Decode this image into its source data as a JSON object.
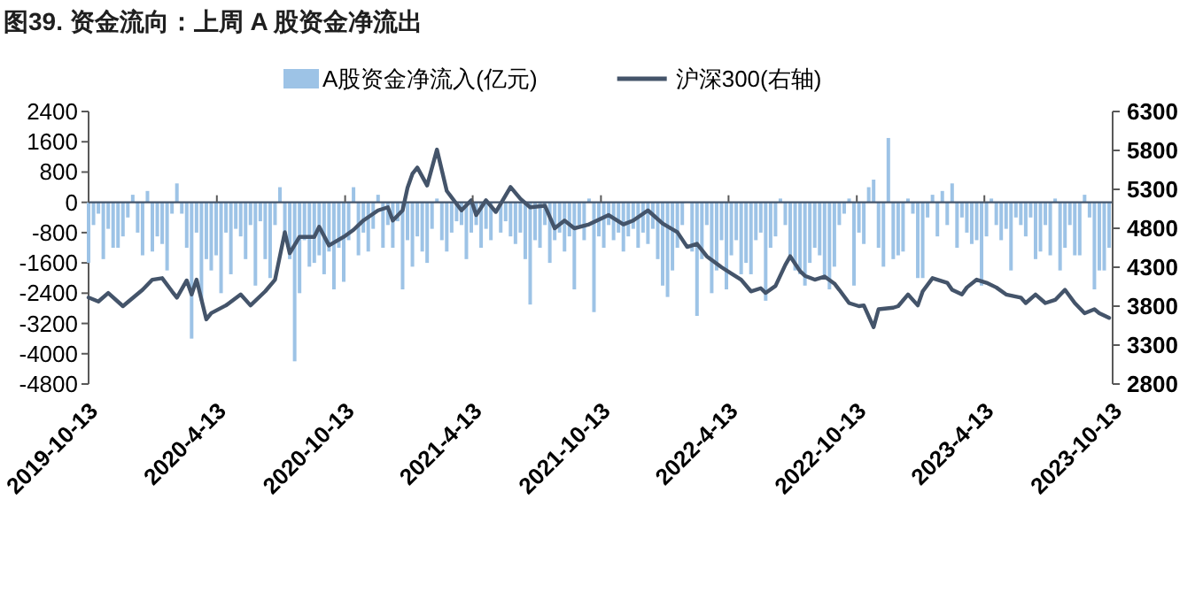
{
  "chart_data": {
    "type": "bar",
    "title": "图39. 资金流向：上周 A 股资金净流出",
    "legend": "top",
    "x": [
      "2019-10-13",
      "2019-10-20",
      "2019-10-27",
      "2019-11-03",
      "2019-11-10",
      "2019-11-17",
      "2019-11-24",
      "2019-12-01",
      "2019-12-08",
      "2019-12-15",
      "2019-12-22",
      "2019-12-29",
      "2020-01-05",
      "2020-01-12",
      "2020-01-19",
      "2020-01-26",
      "2020-02-02",
      "2020-02-09",
      "2020-02-16",
      "2020-02-23",
      "2020-03-01",
      "2020-03-08",
      "2020-03-15",
      "2020-03-22",
      "2020-03-29",
      "2020-04-05",
      "2020-04-12",
      "2020-04-19",
      "2020-04-26",
      "2020-05-03",
      "2020-05-10",
      "2020-05-17",
      "2020-05-24",
      "2020-05-31",
      "2020-06-07",
      "2020-06-14",
      "2020-06-21",
      "2020-06-28",
      "2020-07-05",
      "2020-07-12",
      "2020-07-19",
      "2020-07-26",
      "2020-08-02",
      "2020-08-09",
      "2020-08-16",
      "2020-08-23",
      "2020-08-30",
      "2020-09-06",
      "2020-09-13",
      "2020-09-20",
      "2020-09-27",
      "2020-10-04",
      "2020-10-11",
      "2020-10-18",
      "2020-10-25",
      "2020-11-01",
      "2020-11-08",
      "2020-11-15",
      "2020-11-22",
      "2020-11-29",
      "2020-12-06",
      "2020-12-13",
      "2020-12-20",
      "2020-12-27",
      "2021-01-03",
      "2021-01-10",
      "2021-01-17",
      "2021-01-24",
      "2021-01-31",
      "2021-02-07",
      "2021-02-14",
      "2021-02-21",
      "2021-02-28",
      "2021-03-07",
      "2021-03-14",
      "2021-03-21",
      "2021-03-28",
      "2021-04-04",
      "2021-04-11",
      "2021-04-18",
      "2021-04-25",
      "2021-05-02",
      "2021-05-09",
      "2021-05-16",
      "2021-05-23",
      "2021-05-30",
      "2021-06-06",
      "2021-06-13",
      "2021-06-20",
      "2021-06-27",
      "2021-07-04",
      "2021-07-11",
      "2021-07-18",
      "2021-07-25",
      "2021-08-01",
      "2021-08-08",
      "2021-08-15",
      "2021-08-22",
      "2021-08-29",
      "2021-09-05",
      "2021-09-12",
      "2021-09-19",
      "2021-09-26",
      "2021-10-03",
      "2021-10-10",
      "2021-10-17",
      "2021-10-24",
      "2021-10-31",
      "2021-11-07",
      "2021-11-14",
      "2021-11-21",
      "2021-11-28",
      "2021-12-05",
      "2021-12-12",
      "2021-12-19",
      "2021-12-26",
      "2022-01-02",
      "2022-01-09",
      "2022-01-16",
      "2022-01-23",
      "2022-01-30",
      "2022-02-06",
      "2022-02-13",
      "2022-02-20",
      "2022-02-27",
      "2022-03-06",
      "2022-03-13",
      "2022-03-20",
      "2022-03-27",
      "2022-04-03",
      "2022-04-10",
      "2022-04-17",
      "2022-04-24",
      "2022-05-01",
      "2022-05-08",
      "2022-05-15",
      "2022-05-22",
      "2022-05-29",
      "2022-06-05",
      "2022-06-12",
      "2022-06-19",
      "2022-06-26",
      "2022-07-03",
      "2022-07-10",
      "2022-07-17",
      "2022-07-24",
      "2022-07-31",
      "2022-08-07",
      "2022-08-14",
      "2022-08-21",
      "2022-08-28",
      "2022-09-04",
      "2022-09-11",
      "2022-09-18",
      "2022-09-25",
      "2022-10-02",
      "2022-10-09",
      "2022-10-16",
      "2022-10-23",
      "2022-10-30",
      "2022-11-06",
      "2022-11-13",
      "2022-11-20",
      "2022-11-27",
      "2022-12-04",
      "2022-12-11",
      "2022-12-18",
      "2022-12-25",
      "2023-01-01",
      "2023-01-08",
      "2023-01-15",
      "2023-01-22",
      "2023-01-29",
      "2023-02-05",
      "2023-02-12",
      "2023-02-19",
      "2023-02-26",
      "2023-03-05",
      "2023-03-12",
      "2023-03-19",
      "2023-03-26",
      "2023-04-02",
      "2023-04-09",
      "2023-04-16",
      "2023-04-23",
      "2023-04-30",
      "2023-05-07",
      "2023-05-14",
      "2023-05-21",
      "2023-05-28",
      "2023-06-04",
      "2023-06-11",
      "2023-06-18",
      "2023-06-25",
      "2023-07-02",
      "2023-07-09",
      "2023-07-16",
      "2023-07-23",
      "2023-07-30",
      "2023-08-06",
      "2023-08-13",
      "2023-08-20",
      "2023-08-27",
      "2023-09-03",
      "2023-09-10",
      "2023-09-17",
      "2023-09-24",
      "2023-10-01",
      "2023-10-08"
    ],
    "series": [
      {
        "name": "A股资金净流入(亿元)",
        "color": "#9dc3e6",
        "values": [
          -1600,
          -600,
          -300,
          -1500,
          -700,
          -1200,
          -1200,
          -900,
          -400,
          200,
          -800,
          -1400,
          300,
          -1300,
          -900,
          -1100,
          -1800,
          -300,
          500,
          -300,
          -1200,
          -3600,
          -800,
          -2600,
          -1500,
          -1800,
          -1400,
          -2400,
          -800,
          -1900,
          -700,
          -900,
          -1500,
          -600,
          -2200,
          -500,
          -1500,
          -2000,
          -600,
          400,
          -800,
          -1500,
          -4200,
          -2400,
          -1000,
          -1700,
          -1600,
          -1400,
          -1900,
          -1300,
          -2300,
          -1200,
          -2100,
          -1000,
          400,
          -1400,
          -800,
          -1300,
          -700,
          200,
          -1200,
          -600,
          -1200,
          -500,
          -2300,
          -1000,
          -1700,
          -900,
          -1300,
          -1600,
          -700,
          100,
          -1000,
          -1300,
          -800,
          -500,
          -600,
          -1500,
          -800,
          -600,
          -1200,
          -700,
          -1000,
          null,
          -800,
          -500,
          -900,
          -1100,
          -800,
          -1500,
          -2700,
          -1000,
          -1200,
          -600,
          -1600,
          -1000,
          -800,
          -1300,
          -900,
          -2300,
          -600,
          -1000,
          100,
          -2900,
          -900,
          -1200,
          -600,
          -1000,
          -800,
          -1300,
          -900,
          -700,
          -1200,
          -800,
          -1100,
          -700,
          -1500,
          -2200,
          -2500,
          -1800,
          -1200,
          -600,
          null,
          -1300,
          -3000,
          -1500,
          -600,
          -2400,
          -1800,
          -1000,
          -2300,
          -1400,
          -1000,
          -1900,
          -1600,
          -1900,
          -1000,
          -800,
          -2600,
          -1200,
          -900,
          100,
          -600,
          -1400,
          -1800,
          -1900,
          -2200,
          -1600,
          -1200,
          -1400,
          -2000,
          -2300,
          -1700,
          -600,
          -300,
          100,
          -2200,
          -800,
          -1100,
          400,
          600,
          -1200,
          -1700,
          1700,
          -1500,
          -1400,
          -1300,
          100,
          -300,
          -2000,
          -2000,
          -400,
          200,
          -900,
          300,
          -600,
          500,
          -1200,
          -400,
          -800,
          -1100,
          -1000,
          -2200,
          -900,
          100,
          -600,
          -1000,
          -700,
          -1800,
          -400,
          -600,
          -900,
          -400,
          -1500,
          -1300,
          -600,
          -1400,
          100,
          -1800,
          -1200,
          -600,
          -1400,
          -1400,
          200,
          -400,
          -2300,
          -1800,
          -1800,
          -1200
        ]
      },
      {
        "name": "沪深300(右轴)",
        "type": "line",
        "axis": "y2",
        "color": "#44546a",
        "x": [
          "2019-10-13",
          "2019-10-27",
          "2019-11-10",
          "2019-12-01",
          "2019-12-29",
          "2020-01-12",
          "2020-01-26",
          "2020-02-09",
          "2020-02-16",
          "2020-03-01",
          "2020-03-08",
          "2020-03-15",
          "2020-03-29",
          "2020-04-05",
          "2020-04-26",
          "2020-05-17",
          "2020-05-31",
          "2020-06-21",
          "2020-07-05",
          "2020-07-19",
          "2020-07-26",
          "2020-08-09",
          "2020-08-30",
          "2020-09-06",
          "2020-09-20",
          "2020-10-11",
          "2020-10-25",
          "2020-11-08",
          "2020-11-29",
          "2020-12-13",
          "2020-12-20",
          "2021-01-03",
          "2021-01-10",
          "2021-01-17",
          "2021-01-24",
          "2021-02-07",
          "2021-02-21",
          "2021-03-07",
          "2021-03-28",
          "2021-04-11",
          "2021-04-18",
          "2021-05-02",
          "2021-05-16",
          "2021-06-06",
          "2021-06-20",
          "2021-07-04",
          "2021-07-25",
          "2021-08-08",
          "2021-08-22",
          "2021-09-05",
          "2021-09-26",
          "2021-10-24",
          "2021-11-14",
          "2021-11-28",
          "2021-12-19",
          "2022-01-09",
          "2022-01-30",
          "2022-02-13",
          "2022-02-27",
          "2022-03-13",
          "2022-04-03",
          "2022-04-17",
          "2022-05-01",
          "2022-05-15",
          "2022-05-29",
          "2022-06-05",
          "2022-06-19",
          "2022-07-03",
          "2022-07-10",
          "2022-07-24",
          "2022-07-31",
          "2022-08-14",
          "2022-08-28",
          "2022-09-11",
          "2022-09-18",
          "2022-10-02",
          "2022-10-16",
          "2022-10-23",
          "2022-11-06",
          "2022-11-13",
          "2022-12-04",
          "2022-12-11",
          "2022-12-25",
          "2023-01-08",
          "2023-01-15",
          "2023-01-29",
          "2023-02-19",
          "2023-02-26",
          "2023-03-12",
          "2023-03-19",
          "2023-04-02",
          "2023-04-16",
          "2023-04-30",
          "2023-05-14",
          "2023-06-04",
          "2023-06-11",
          "2023-06-25",
          "2023-07-09",
          "2023-07-23",
          "2023-08-06",
          "2023-08-20",
          "2023-09-03",
          "2023-09-17",
          "2023-09-24",
          "2023-10-08"
        ],
        "values": [
          3910,
          3860,
          3970,
          3800,
          4010,
          4140,
          4160,
          3990,
          3910,
          4130,
          3950,
          4140,
          3630,
          3710,
          3810,
          3950,
          3810,
          3990,
          4140,
          4750,
          4480,
          4690,
          4690,
          4820,
          4580,
          4690,
          4780,
          4900,
          5030,
          5070,
          4900,
          5030,
          5320,
          5500,
          5580,
          5350,
          5810,
          5280,
          5030,
          5160,
          4970,
          5160,
          5010,
          5330,
          5180,
          5070,
          5090,
          4800,
          4900,
          4800,
          4850,
          4970,
          4850,
          4900,
          5030,
          4860,
          4750,
          4560,
          4600,
          4440,
          4300,
          4220,
          4140,
          3990,
          4030,
          3970,
          4060,
          4330,
          4440,
          4250,
          4190,
          4140,
          4180,
          4090,
          4010,
          3840,
          3800,
          3810,
          3530,
          3760,
          3780,
          3800,
          3950,
          3810,
          3990,
          4160,
          4100,
          4010,
          3950,
          4040,
          4140,
          4100,
          4040,
          3950,
          3910,
          3840,
          3950,
          3840,
          3880,
          4010,
          3840,
          3710,
          3760,
          3710,
          3650
        ]
      }
    ],
    "xlim": [
      "2019-10-13",
      "2023-10-13"
    ],
    "xticks": [
      {
        "value": "2019-10-13",
        "label": "2019-10-13"
      },
      {
        "value": "2020-04-13",
        "label": "2020-4-13"
      },
      {
        "value": "2020-10-13",
        "label": "2020-10-13"
      },
      {
        "value": "2021-04-13",
        "label": "2021-4-13"
      },
      {
        "value": "2021-10-13",
        "label": "2021-10-13"
      },
      {
        "value": "2022-04-13",
        "label": "2022-4-13"
      },
      {
        "value": "2022-10-13",
        "label": "2022-10-13"
      },
      {
        "value": "2023-04-13",
        "label": "2023-4-13"
      },
      {
        "value": "2023-10-13",
        "label": "2023-10-13"
      }
    ],
    "ylim": [
      -4800,
      2400
    ],
    "yticks": [
      -4800,
      -4000,
      -3200,
      -2400,
      -1600,
      -800,
      0,
      800,
      1600,
      2400
    ],
    "y2lim": [
      2800,
      6300
    ],
    "y2ticks": [
      2800,
      3300,
      3800,
      4300,
      4800,
      5300,
      5800,
      6300
    ]
  }
}
